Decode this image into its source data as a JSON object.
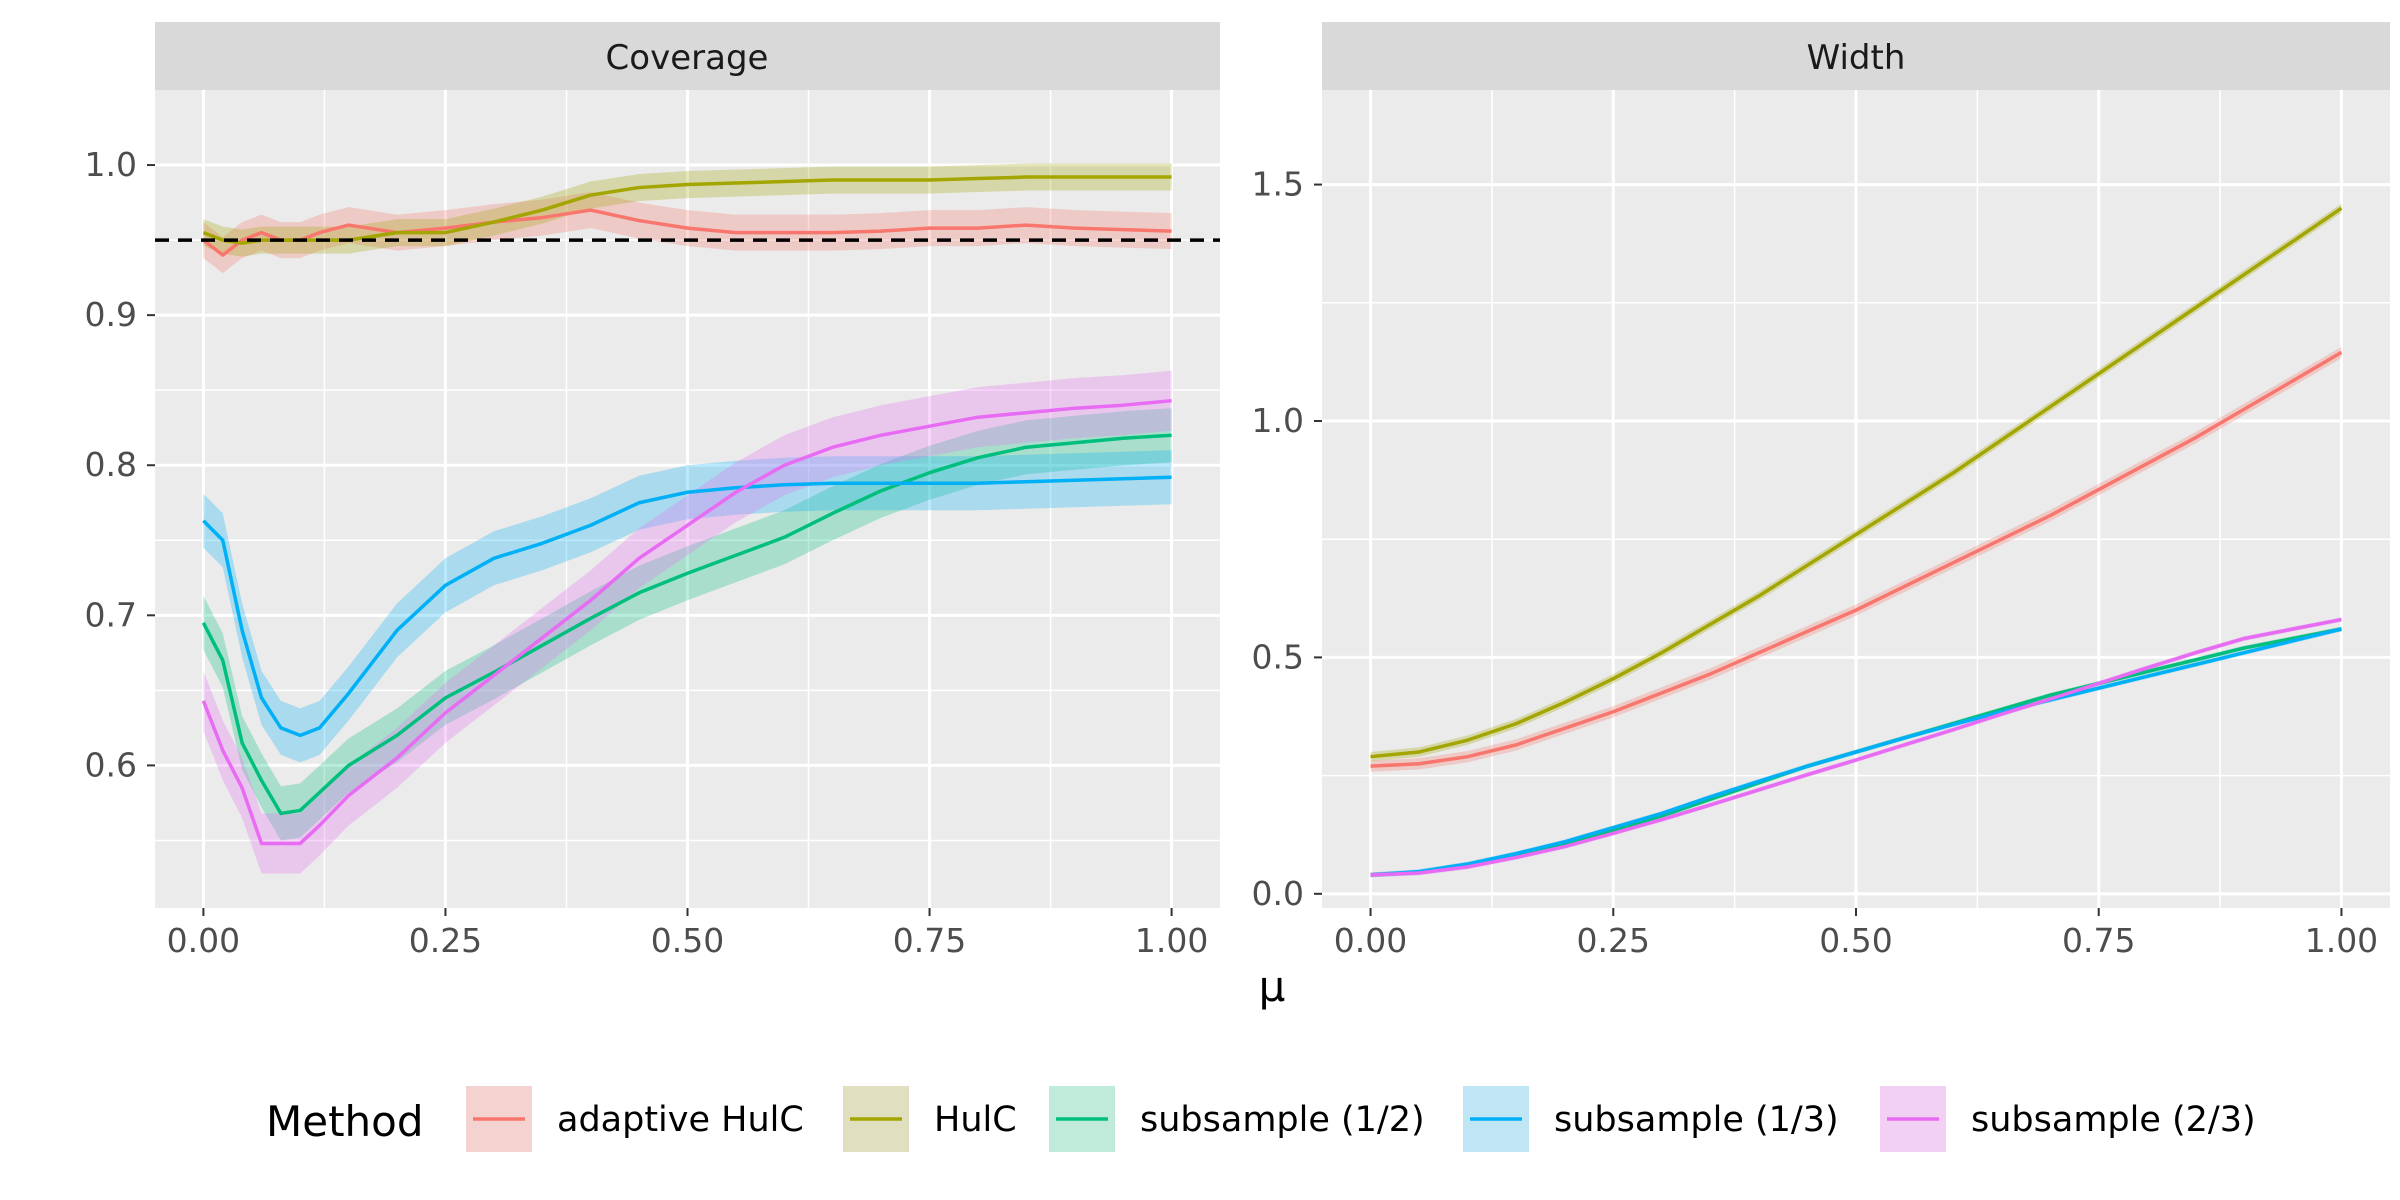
{
  "chart_data": [
    {
      "type": "line",
      "title": "Coverage",
      "xlabel": "μ",
      "ylabel": "",
      "xlim": [
        -0.05,
        1.05
      ],
      "ylim": [
        0.505,
        1.05
      ],
      "x_ticks": [
        "0.00",
        "0.25",
        "0.50",
        "0.75",
        "1.00"
      ],
      "y_ticks": [
        "0.6",
        "0.7",
        "0.8",
        "0.9",
        "1.0"
      ],
      "reference_line": {
        "y": 0.95,
        "style": "dashed",
        "color": "#000000"
      },
      "x": [
        0,
        0.02,
        0.04,
        0.06,
        0.08,
        0.1,
        0.12,
        0.15,
        0.2,
        0.25,
        0.3,
        0.35,
        0.4,
        0.45,
        0.5,
        0.55,
        0.6,
        0.65,
        0.7,
        0.75,
        0.8,
        0.85,
        0.9,
        0.95,
        1.0
      ],
      "series": [
        {
          "name": "adaptive HulC",
          "band": 0.012,
          "values": [
            0.95,
            0.94,
            0.95,
            0.955,
            0.95,
            0.95,
            0.955,
            0.96,
            0.955,
            0.958,
            0.962,
            0.965,
            0.97,
            0.963,
            0.958,
            0.955,
            0.955,
            0.955,
            0.956,
            0.958,
            0.958,
            0.96,
            0.958,
            0.957,
            0.956
          ]
        },
        {
          "name": "HulC",
          "band": 0.009,
          "values": [
            0.955,
            0.95,
            0.948,
            0.95,
            0.95,
            0.95,
            0.95,
            0.95,
            0.955,
            0.955,
            0.962,
            0.97,
            0.98,
            0.985,
            0.987,
            0.988,
            0.989,
            0.99,
            0.99,
            0.99,
            0.991,
            0.992,
            0.992,
            0.992,
            0.992
          ]
        },
        {
          "name": "subsample (1/2)",
          "band": 0.018,
          "values": [
            0.695,
            0.67,
            0.615,
            0.59,
            0.568,
            0.57,
            0.582,
            0.6,
            0.62,
            0.645,
            0.662,
            0.68,
            0.698,
            0.715,
            0.728,
            0.74,
            0.752,
            0.768,
            0.783,
            0.795,
            0.805,
            0.812,
            0.815,
            0.818,
            0.82
          ]
        },
        {
          "name": "subsample (1/3)",
          "band": 0.018,
          "values": [
            0.763,
            0.75,
            0.69,
            0.645,
            0.625,
            0.62,
            0.625,
            0.648,
            0.69,
            0.72,
            0.738,
            0.748,
            0.76,
            0.775,
            0.782,
            0.785,
            0.787,
            0.788,
            0.788,
            0.788,
            0.788,
            0.789,
            0.79,
            0.791,
            0.792
          ]
        },
        {
          "name": "subsample (2/3)",
          "band": 0.02,
          "values": [
            0.643,
            0.61,
            0.585,
            0.548,
            0.548,
            0.548,
            0.56,
            0.58,
            0.605,
            0.635,
            0.66,
            0.685,
            0.71,
            0.738,
            0.76,
            0.782,
            0.8,
            0.812,
            0.82,
            0.826,
            0.832,
            0.835,
            0.838,
            0.84,
            0.843
          ]
        }
      ]
    },
    {
      "type": "line",
      "title": "Width",
      "xlabel": "μ",
      "ylabel": "",
      "xlim": [
        -0.05,
        1.05
      ],
      "ylim": [
        -0.03,
        1.7
      ],
      "x_ticks": [
        "0.00",
        "0.25",
        "0.50",
        "0.75",
        "1.00"
      ],
      "y_ticks": [
        "0.0",
        "0.5",
        "1.0",
        "1.5"
      ],
      "x": [
        0,
        0.05,
        0.1,
        0.15,
        0.2,
        0.25,
        0.3,
        0.35,
        0.4,
        0.45,
        0.5,
        0.55,
        0.6,
        0.65,
        0.7,
        0.75,
        0.8,
        0.85,
        0.9,
        0.95,
        1.0
      ],
      "series": [
        {
          "name": "adaptive HulC",
          "band": 0.012,
          "values": [
            0.27,
            0.275,
            0.29,
            0.315,
            0.35,
            0.385,
            0.425,
            0.465,
            0.51,
            0.555,
            0.6,
            0.65,
            0.7,
            0.75,
            0.8,
            0.855,
            0.91,
            0.965,
            1.025,
            1.085,
            1.145
          ]
        },
        {
          "name": "HulC",
          "band": 0.01,
          "values": [
            0.29,
            0.3,
            0.325,
            0.36,
            0.405,
            0.455,
            0.51,
            0.57,
            0.63,
            0.695,
            0.76,
            0.825,
            0.89,
            0.96,
            1.03,
            1.1,
            1.17,
            1.24,
            1.31,
            1.38,
            1.45
          ]
        },
        {
          "name": "subsample (1/2)",
          "band": 0.005,
          "values": [
            0.04,
            0.045,
            0.06,
            0.08,
            0.105,
            0.135,
            0.165,
            0.2,
            0.235,
            0.27,
            0.3,
            0.33,
            0.36,
            0.39,
            0.42,
            0.445,
            0.47,
            0.495,
            0.52,
            0.54,
            0.56
          ]
        },
        {
          "name": "subsample (1/3)",
          "band": 0.005,
          "values": [
            0.04,
            0.047,
            0.063,
            0.085,
            0.11,
            0.14,
            0.17,
            0.205,
            0.238,
            0.27,
            0.3,
            0.33,
            0.358,
            0.385,
            0.41,
            0.435,
            0.46,
            0.485,
            0.51,
            0.535,
            0.56
          ]
        },
        {
          "name": "subsample (2/3)",
          "band": 0.005,
          "values": [
            0.04,
            0.044,
            0.057,
            0.077,
            0.1,
            0.128,
            0.157,
            0.188,
            0.22,
            0.252,
            0.283,
            0.315,
            0.347,
            0.38,
            0.412,
            0.445,
            0.478,
            0.51,
            0.54,
            0.56,
            0.58
          ]
        }
      ]
    }
  ],
  "legend": {
    "title": "Method",
    "placement": "bottom",
    "items": [
      {
        "label": "adaptive HulC",
        "color": "#F8766D",
        "fill": "#F4D2D0"
      },
      {
        "label": "HulC",
        "color": "#A3A500",
        "fill": "#E0E0C0"
      },
      {
        "label": "subsample (1/2)",
        "color": "#00BF7D",
        "fill": "#C0EAD9"
      },
      {
        "label": "subsample (1/3)",
        "color": "#00B0F6",
        "fill": "#C0E6F6"
      },
      {
        "label": "subsample (2/3)",
        "color": "#E76BF3",
        "fill": "#F2D0F3"
      }
    ]
  },
  "colors": {
    "panel_bg": "#EBEBEB",
    "strip_bg": "#D9D9D9",
    "grid": "#FFFFFF",
    "tick_text": "#4D4D4D"
  }
}
